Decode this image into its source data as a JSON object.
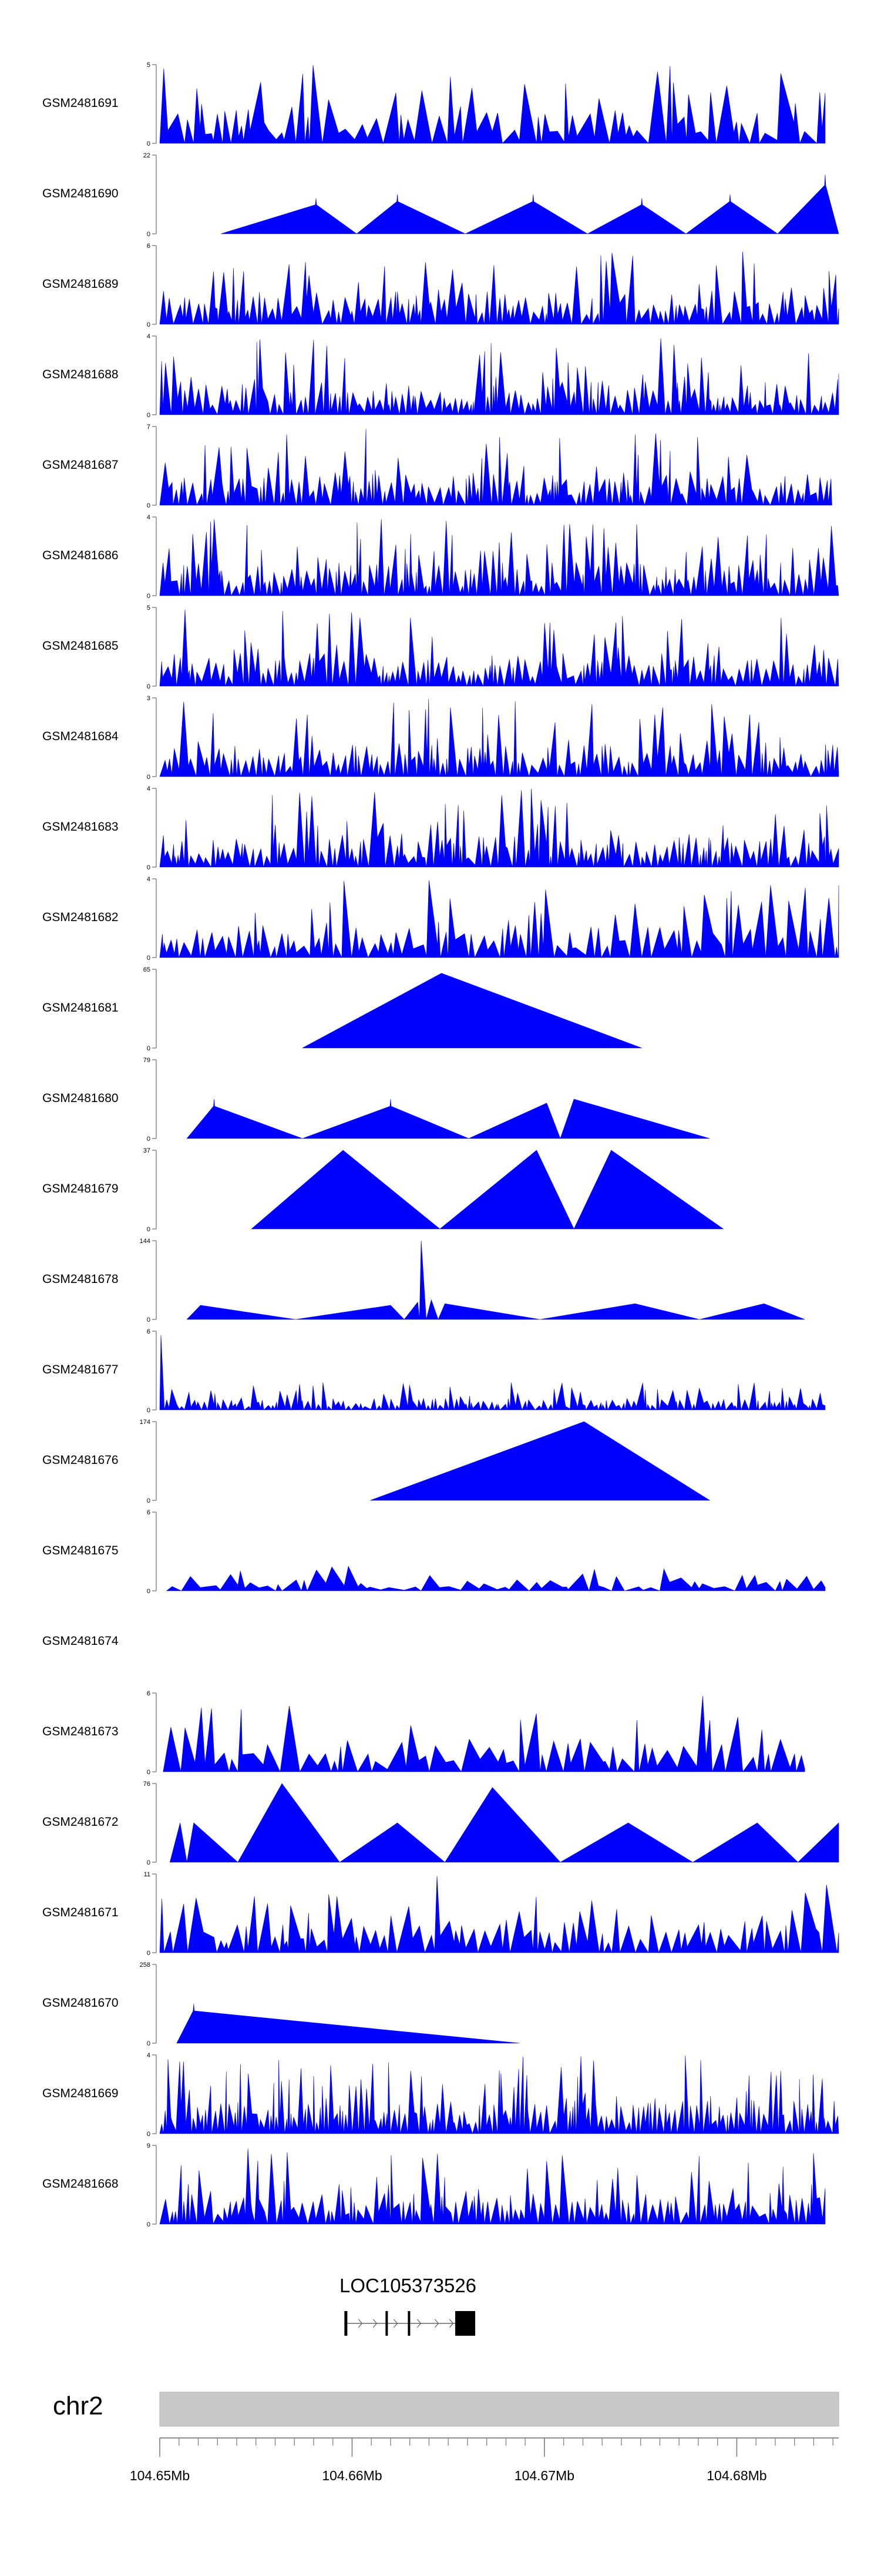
{
  "chart_data": {
    "type": "area",
    "title": "",
    "chromosome": "chr2",
    "xlim": [
      104.65,
      104.6853
    ],
    "x_unit": "Mb",
    "xticks": [
      {
        "value": 104.65,
        "label": "104.65Mb"
      },
      {
        "value": 104.66,
        "label": "104.66Mb"
      },
      {
        "value": 104.67,
        "label": "104.67Mb"
      },
      {
        "value": 104.68,
        "label": "104.68Mb"
      }
    ],
    "tracks": [
      {
        "name": "GSM2481691",
        "ymax": 5,
        "style": "dense",
        "start": 0.0,
        "end": 0.98,
        "density": 60
      },
      {
        "name": "GSM2481690",
        "ymax": 22,
        "style": "peaks",
        "start": 0.09,
        "end": 1.0,
        "peaks": [
          {
            "x": 0.23,
            "h": 0.45,
            "sp": 1
          },
          {
            "x": 0.35,
            "h": 0.5,
            "sp": 1
          },
          {
            "x": 0.55,
            "h": 0.5,
            "sp": 1
          },
          {
            "x": 0.71,
            "h": 0.45,
            "sp": 1
          },
          {
            "x": 0.84,
            "h": 0.5,
            "sp": 1
          },
          {
            "x": 0.98,
            "h": 0.75,
            "sp": 1
          }
        ]
      },
      {
        "name": "GSM2481689",
        "ymax": 6,
        "style": "dense",
        "start": 0.0,
        "end": 1.0,
        "density": 110
      },
      {
        "name": "GSM2481688",
        "ymax": 4,
        "style": "dense",
        "start": 0.0,
        "end": 1.0,
        "density": 130
      },
      {
        "name": "GSM2481687",
        "ymax": 7,
        "style": "dense",
        "start": 0.0,
        "end": 0.99,
        "density": 110
      },
      {
        "name": "GSM2481686",
        "ymax": 4,
        "style": "dense",
        "start": 0.0,
        "end": 1.0,
        "density": 130
      },
      {
        "name": "GSM2481685",
        "ymax": 5,
        "style": "dense",
        "start": 0.0,
        "end": 1.0,
        "density": 120
      },
      {
        "name": "GSM2481684",
        "ymax": 3,
        "style": "dense",
        "start": 0.0,
        "end": 1.0,
        "density": 120
      },
      {
        "name": "GSM2481683",
        "ymax": 4,
        "style": "dense",
        "start": 0.0,
        "end": 1.0,
        "density": 120
      },
      {
        "name": "GSM2481682",
        "ymax": 4,
        "style": "dense",
        "start": 0.0,
        "end": 1.0,
        "density": 80
      },
      {
        "name": "GSM2481681",
        "ymax": 65,
        "style": "peaks",
        "start": 0.21,
        "end": 0.71,
        "peaks": [
          {
            "x": 0.415,
            "h": 0.95,
            "sp": 0
          }
        ]
      },
      {
        "name": "GSM2481680",
        "ymax": 79,
        "style": "peaks",
        "start": 0.04,
        "end": 0.81,
        "peaks": [
          {
            "x": 0.08,
            "h": 0.5,
            "sp": 1
          },
          {
            "x": 0.34,
            "h": 0.5,
            "sp": 1
          },
          {
            "x": 0.57,
            "h": 0.45,
            "sp": 0
          },
          {
            "x": 0.61,
            "h": 0.5,
            "sp": 0
          }
        ]
      },
      {
        "name": "GSM2481679",
        "ymax": 37,
        "style": "peaks",
        "start": 0.135,
        "end": 0.83,
        "peaks": [
          {
            "x": 0.27,
            "h": 1.0,
            "sp": 0
          },
          {
            "x": 0.555,
            "h": 1.0,
            "sp": 0
          },
          {
            "x": 0.665,
            "h": 1.0,
            "sp": 0
          }
        ]
      },
      {
        "name": "GSM2481678",
        "ymax": 144,
        "style": "peaks",
        "start": 0.04,
        "end": 0.95,
        "peaks": [
          {
            "x": 0.06,
            "h": 0.18,
            "sp": 0
          },
          {
            "x": 0.34,
            "h": 0.18,
            "sp": 0
          },
          {
            "x": 0.38,
            "h": 0.22,
            "sp": 0
          },
          {
            "x": 0.385,
            "h": 1.0,
            "sp": 0
          },
          {
            "x": 0.4,
            "h": 0.25,
            "sp": 0
          },
          {
            "x": 0.42,
            "h": 0.2,
            "sp": 0
          },
          {
            "x": 0.7,
            "h": 0.2,
            "sp": 0
          },
          {
            "x": 0.89,
            "h": 0.2,
            "sp": 0
          }
        ]
      },
      {
        "name": "GSM2481677",
        "ymax": 6,
        "style": "dense",
        "start": 0.0,
        "end": 0.98,
        "density": 130,
        "scale": 0.35,
        "leadSpike": 0.95
      },
      {
        "name": "GSM2481676",
        "ymax": 174,
        "style": "peaks",
        "start": 0.31,
        "end": 0.81,
        "peaks": [
          {
            "x": 0.625,
            "h": 1.0,
            "sp": 0
          }
        ]
      },
      {
        "name": "GSM2481675",
        "ymax": 6,
        "style": "dense",
        "start": 0.01,
        "end": 0.98,
        "density": 45,
        "scale": 0.35
      },
      {
        "name": "GSM2481674",
        "ymax": null,
        "style": "empty"
      },
      {
        "name": "GSM2481673",
        "ymax": 6,
        "style": "dense",
        "start": 0.005,
        "end": 0.95,
        "density": 50
      },
      {
        "name": "GSM2481672",
        "ymax": 76,
        "style": "peaks",
        "start": 0.015,
        "end": 1.0,
        "peaks": [
          {
            "x": 0.03,
            "h": 0.5,
            "sp": 0
          },
          {
            "x": 0.05,
            "h": 0.5,
            "sp": 0
          },
          {
            "x": 0.18,
            "h": 1.0,
            "sp": 0
          },
          {
            "x": 0.35,
            "h": 0.5,
            "sp": 0
          },
          {
            "x": 0.49,
            "h": 0.95,
            "sp": 0
          },
          {
            "x": 0.69,
            "h": 0.5,
            "sp": 0
          },
          {
            "x": 0.88,
            "h": 0.5,
            "sp": 0
          },
          {
            "x": 1.0,
            "h": 0.5,
            "sp": 0
          }
        ]
      },
      {
        "name": "GSM2481671",
        "ymax": 11,
        "style": "dense",
        "start": 0.0,
        "end": 1.0,
        "density": 70
      },
      {
        "name": "GSM2481670",
        "ymax": 258,
        "style": "peaks",
        "start": 0.025,
        "end": 0.53,
        "peaks": [
          {
            "x": 0.05,
            "h": 0.5,
            "sp": 1
          }
        ]
      },
      {
        "name": "GSM2481669",
        "ymax": 4,
        "style": "dense",
        "start": 0.0,
        "end": 1.0,
        "density": 150
      },
      {
        "name": "GSM2481668",
        "ymax": 9,
        "style": "dense",
        "start": 0.0,
        "end": 0.98,
        "density": 110
      }
    ],
    "gene": {
      "name": "LOC105373526",
      "start": 104.6596,
      "end": 104.6664
    }
  },
  "colors": {
    "track": "#0000ff",
    "ideogram": "#c8c8c8",
    "axis": "#808080"
  }
}
